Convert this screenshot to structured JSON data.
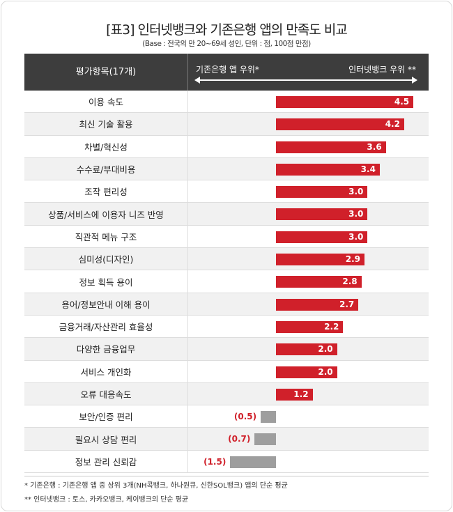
{
  "chart_data": {
    "type": "bar",
    "title": "[표3] 인터넷뱅크와 기존은행 앱의 만족도 비교",
    "subtitle": "(Base : 전국의 만 20~69세 성인, 단위 :  점, 100점 만점)",
    "header": {
      "category": "평가항목(17개)",
      "left": "기존은행 앱 우위*",
      "right": "인터넷뱅크 우위 **"
    },
    "categories": [
      "이용 속도",
      "최신 기술 활용",
      "차별/혁신성",
      "수수료/부대비용",
      "조작 편리성",
      "상품/서비스에 이용자 니즈 반영",
      "직관적 메뉴 구조",
      "심미성(디자인)",
      "정보 획득 용이",
      "용어/정보안내 이해 용이",
      "금융거래/자산관리 효율성",
      "다양한 금융업무",
      "서비스 개인화",
      "오류 대응속도",
      "보안/인증 편리",
      "필요시 상담 편리",
      "정보 관리 신뢰감"
    ],
    "values": [
      4.5,
      4.2,
      3.6,
      3.4,
      3.0,
      3.0,
      3.0,
      2.9,
      2.8,
      2.7,
      2.2,
      2.0,
      2.0,
      1.2,
      -0.5,
      -0.7,
      -1.5
    ],
    "labels": [
      "4.5",
      "4.2",
      "3.6",
      "3.4",
      "3.0",
      "3.0",
      "3.0",
      "2.9",
      "2.8",
      "2.7",
      "2.2",
      "2.0",
      "2.0",
      "1.2",
      "(0.5)",
      "(0.7)",
      "(1.5)"
    ],
    "colors": {
      "positive": "#d0202a",
      "negative": "#9e9e9e"
    }
  },
  "notes": [
    "* 기존은행 : 기존은행 앱 중 상위 3개(NH콕뱅크, 하나원큐, 신한SOL뱅크) 앱의 단순 평균",
    "** 인터넷뱅크 : 토스, 카카오뱅크, 케이뱅크의 단순 평균"
  ]
}
